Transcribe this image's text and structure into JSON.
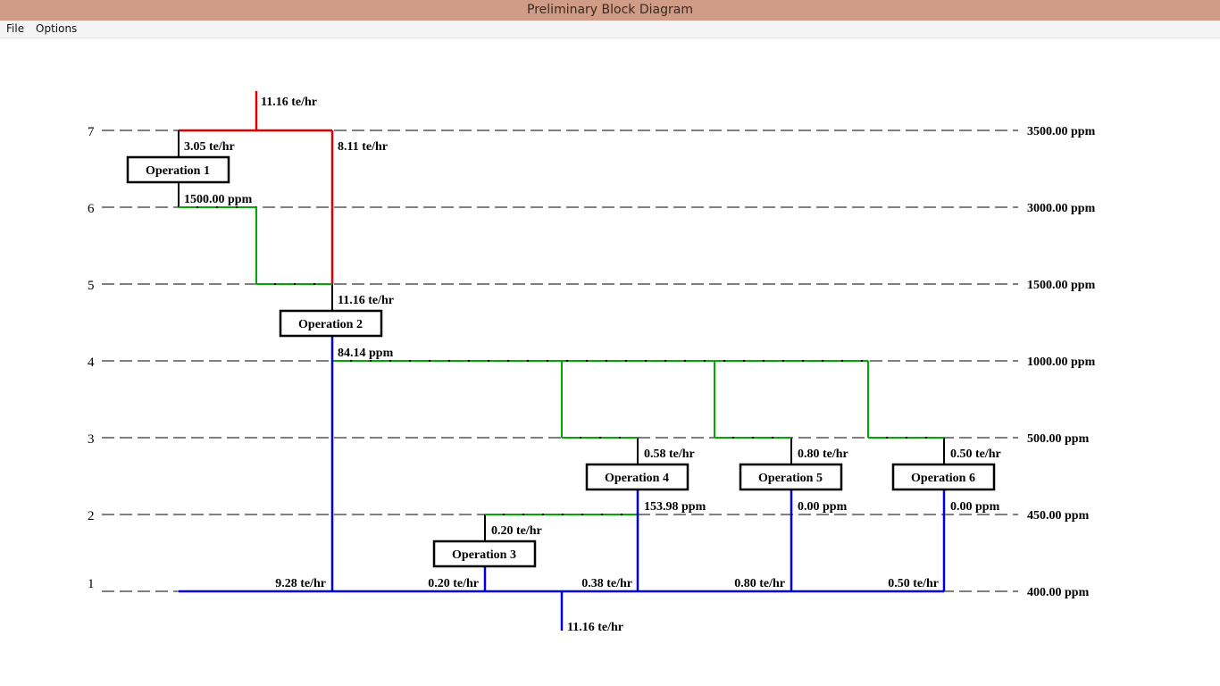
{
  "window": {
    "title": "Preliminary Block Diagram"
  },
  "menu": {
    "items": [
      "File",
      "Options"
    ]
  },
  "colors": {
    "fresh": "#dd0000",
    "waste": "#0000dd",
    "reuse": "#00aa00",
    "dash": "#000000"
  },
  "diagram": {
    "levels": [
      {
        "label": "7",
        "ppm": "3500.00 ppm"
      },
      {
        "label": "6",
        "ppm": "3000.00 ppm"
      },
      {
        "label": "5",
        "ppm": "1500.00 ppm"
      },
      {
        "label": "4",
        "ppm": "1000.00 ppm"
      },
      {
        "label": "3",
        "ppm": "500.00 ppm"
      },
      {
        "label": "2",
        "ppm": "450.00 ppm"
      },
      {
        "label": "1",
        "ppm": "400.00 ppm"
      }
    ],
    "operations": [
      "Operation 1",
      "Operation 2",
      "Operation 3",
      "Operation 4",
      "Operation 5",
      "Operation 6"
    ],
    "labels": {
      "fresh_in": "11.16 te/hr",
      "op1_fresh": "3.05 te/hr",
      "fresh_bypass": "8.11 te/hr",
      "op1_out": "1500.00 ppm",
      "op2_in": "11.16 te/hr",
      "op2_out": "84.14 ppm",
      "op4_in": "0.58 te/hr",
      "op5_in": "0.80 te/hr",
      "op6_in": "0.50 te/hr",
      "op4_out": "153.98 ppm",
      "op5_out": "0.00 ppm",
      "op6_out": "0.00 ppm",
      "op3_in": "0.20 te/hr",
      "waste_1": "9.28 te/hr",
      "waste_2": "0.20 te/hr",
      "waste_3": "0.38 te/hr",
      "waste_4": "0.80 te/hr",
      "waste_5": "0.50 te/hr",
      "waste_total": "11.16 te/hr"
    }
  }
}
